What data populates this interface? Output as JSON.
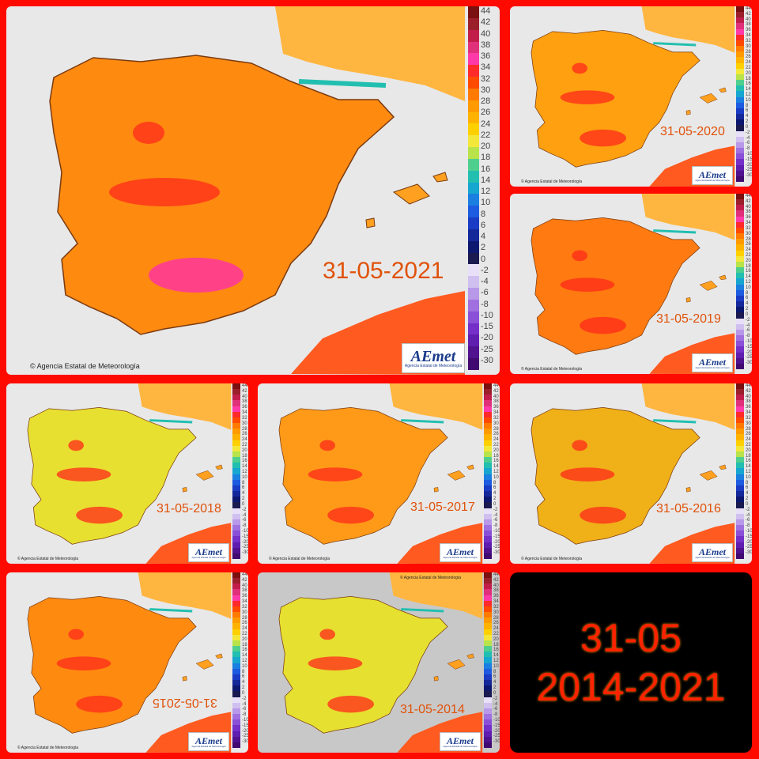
{
  "credit": "Agencia Estatal de Meteorología",
  "logo": {
    "brand": "AEmet",
    "sub": "Agencia Estatal de Meteorología"
  },
  "legend_ticks": [
    "44",
    "42",
    "40",
    "38",
    "36",
    "34",
    "32",
    "30",
    "28",
    "26",
    "24",
    "22",
    "20",
    "18",
    "16",
    "14",
    "12",
    "10",
    "8",
    "6",
    "4",
    "2",
    "0",
    "-2",
    "-4",
    "-6",
    "-8",
    "-10",
    "-15",
    "-20",
    "-25",
    "-30"
  ],
  "legend_colors": [
    "#7a1010",
    "#9b1f2a",
    "#c21d4a",
    "#e0307a",
    "#ff3aa8",
    "#ff2a2a",
    "#ff4a00",
    "#ff7a00",
    "#ff9a00",
    "#ffb300",
    "#ffd000",
    "#f3e83a",
    "#b8e34a",
    "#4fcf8e",
    "#22bfb0",
    "#17a6d0",
    "#1a7fe0",
    "#1d5be0",
    "#1a3cc4",
    "#14289a",
    "#0c1870",
    "#1a1a50",
    "#e8e0f8",
    "#d0c0f0",
    "#b898e8",
    "#a070e0",
    "#8a50d8",
    "#7430c8",
    "#601eb0",
    "#50128f",
    "#400a70"
  ],
  "panels": [
    {
      "date": "31-05-2021",
      "tint": "#ff8a10"
    },
    {
      "date": "31-05-2020",
      "tint": "#ffa010"
    },
    {
      "date": "31-05-2019",
      "tint": "#ff7a10"
    },
    {
      "date": "31-05-2018",
      "tint": "#e8e030"
    },
    {
      "date": "31-05-2017",
      "tint": "#ff9a18"
    },
    {
      "date": "31-05-2016",
      "tint": "#f0b018"
    },
    {
      "date": "31-05-2015",
      "tint": "#ff8a10"
    },
    {
      "date": "31-05-2014",
      "tint": "#e6e030"
    }
  ],
  "summary": {
    "line1": "31-05",
    "line2": "2014-2021"
  }
}
